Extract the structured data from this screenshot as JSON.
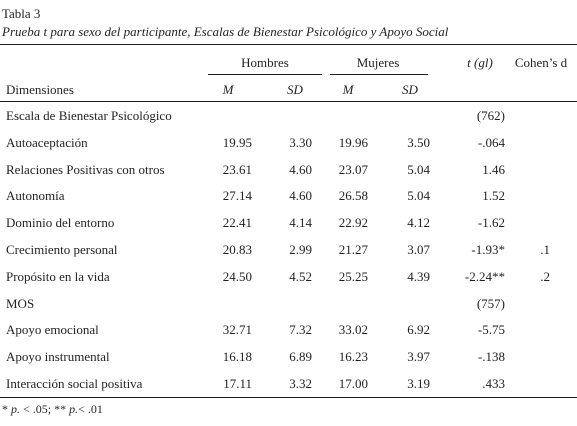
{
  "table": {
    "label": "Tabla 3",
    "title": "Prueba t para sexo del participante, Escalas de Bienestar Psicológico y Apoyo Social",
    "group_headers": {
      "hombres": "Hombres",
      "mujeres": "Mujeres",
      "t": "t (gl)",
      "d": "Cohen’s d"
    },
    "sub_headers": {
      "dim": "Dimensiones",
      "m1": "M",
      "sd1": "SD",
      "m2": "M",
      "sd2": "SD"
    },
    "rows": [
      {
        "label": "Escala de Bienestar Psicológico",
        "m1": "",
        "sd1": "",
        "m2": "",
        "sd2": "",
        "t": "(762)",
        "d": ""
      },
      {
        "label": "Autoaceptación",
        "m1": "19.95",
        "sd1": "3.30",
        "m2": "19.96",
        "sd2": "3.50",
        "t": "-.064",
        "d": ""
      },
      {
        "label": "Relaciones Positivas con otros",
        "m1": "23.61",
        "sd1": "4.60",
        "m2": "23.07",
        "sd2": "5.04",
        "t": "1.46",
        "d": ""
      },
      {
        "label": "Autonomía",
        "m1": "27.14",
        "sd1": "4.60",
        "m2": "26.58",
        "sd2": "5.04",
        "t": "1.52",
        "d": ""
      },
      {
        "label": "Dominio del entorno",
        "m1": "22.41",
        "sd1": "4.14",
        "m2": "22.92",
        "sd2": "4.12",
        "t": "-1.62",
        "d": ""
      },
      {
        "label": "Crecimiento personal",
        "m1": "20.83",
        "sd1": "2.99",
        "m2": "21.27",
        "sd2": "3.07",
        "t": "-1.93*",
        "d": ".1"
      },
      {
        "label": "Propósito en la vida",
        "m1": "24.50",
        "sd1": "4.52",
        "m2": "25.25",
        "sd2": "4.39",
        "t": "-2.24**",
        "d": ".2"
      },
      {
        "label": "MOS",
        "m1": "",
        "sd1": "",
        "m2": "",
        "sd2": "",
        "t": "(757)",
        "d": ""
      },
      {
        "label": "Apoyo emocional",
        "m1": "32.71",
        "sd1": "7.32",
        "m2": "33.02",
        "sd2": "6.92",
        "t": "-5.75",
        "d": ""
      },
      {
        "label": "Apoyo instrumental",
        "m1": "16.18",
        "sd1": "6.89",
        "m2": "16.23",
        "sd2": "3.97",
        "t": "-.138",
        "d": ""
      },
      {
        "label": "Interacción social positiva",
        "m1": "17.11",
        "sd1": "3.32",
        "m2": "17.00",
        "sd2": "3.19",
        "t": ".433",
        "d": ""
      }
    ],
    "note": {
      "p1_mark": "* ",
      "p1_var": "p.",
      "p1_rest": " < .05; ",
      "p2_mark": "** ",
      "p2_var": "p.",
      "p2_rest": "< .01"
    }
  }
}
